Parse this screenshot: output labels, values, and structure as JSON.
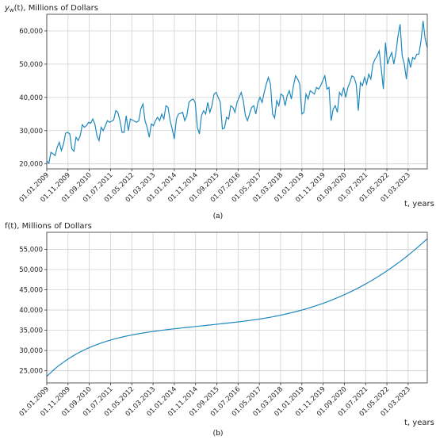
{
  "chart_data": [
    {
      "type": "line",
      "panel_label": "(a)",
      "ylabel_main": "y",
      "ylabel_sub": "w",
      "ylabel_rest": "(t), Millions of Dollars",
      "xlabel": "t, years",
      "ylim": [
        18500,
        65000
      ],
      "yticks": [
        20000,
        30000,
        40000,
        50000,
        60000
      ],
      "ytick_labels": [
        "20,000",
        "30,000",
        "40,000",
        "50,000",
        "60,000"
      ],
      "x_start": "01.01.2009",
      "xticks": [
        "01.01.2009",
        "01.11.2009",
        "01.09.2010",
        "01.07.2011",
        "01.05.2012",
        "01.03.2013",
        "01.01.2014",
        "01.11.2014",
        "01.09.2015",
        "01.07.2016",
        "01.05.2017",
        "01.03.2018",
        "01.01.2019",
        "01.11.2019",
        "01.09.2020",
        "01.07.2021",
        "01.05.2022",
        "01.03.2023"
      ],
      "values": [
        20800,
        20200,
        23500,
        23000,
        22500,
        25000,
        26500,
        24000,
        26000,
        29200,
        29500,
        29000,
        24500,
        23800,
        28000,
        27000,
        28500,
        31800,
        31000,
        31500,
        32500,
        32200,
        33500,
        32000,
        28500,
        27000,
        31000,
        30000,
        31500,
        33000,
        32500,
        32800,
        33200,
        36000,
        35500,
        33000,
        29500,
        29500,
        34500,
        30000,
        33500,
        33200,
        32800,
        32500,
        33000,
        36500,
        38000,
        33000,
        31000,
        28000,
        32000,
        31500,
        33000,
        34000,
        33000,
        35000,
        33500,
        37500,
        37000,
        33000,
        30500,
        27500,
        33500,
        35000,
        35200,
        35500,
        33000,
        34500,
        38500,
        39200,
        39500,
        38500,
        31000,
        29000,
        34500,
        36000,
        35000,
        38500,
        35500,
        37500,
        41000,
        41500,
        40000,
        38500,
        30500,
        30800,
        34000,
        33500,
        37500,
        37000,
        35500,
        38500,
        40000,
        41500,
        39000,
        34500,
        33000,
        35000,
        37000,
        37500,
        35000,
        38500,
        40000,
        38500,
        41500,
        44000,
        46000,
        44000,
        35000,
        33800,
        39000,
        37500,
        41000,
        40500,
        37500,
        40500,
        42000,
        39500,
        43500,
        46500,
        45500,
        44000,
        35000,
        35500,
        41000,
        39500,
        42000,
        41500,
        41000,
        43000,
        42500,
        43500,
        45000,
        46500,
        42500,
        43000,
        33000,
        36500,
        37500,
        35500,
        41500,
        40500,
        43000,
        40000,
        43000,
        44500,
        46500,
        46000,
        44000,
        36000,
        44500,
        43500,
        46000,
        44000,
        47000,
        45500,
        50000,
        51500,
        52500,
        54000,
        48500,
        42500,
        56500,
        50000,
        52000,
        53500,
        50000,
        53500,
        58500,
        62000,
        52500,
        50000,
        45500,
        52000,
        49000,
        52000,
        51500,
        53000,
        53000,
        57000,
        63000,
        57500,
        55000
      ]
    },
    {
      "type": "line",
      "panel_label": "(b)",
      "ylabel": "f(t), Millions of Dollars",
      "xlabel": "t, years",
      "ylim": [
        22000,
        59200
      ],
      "yticks": [
        25000,
        30000,
        35000,
        40000,
        45000,
        50000,
        55000
      ],
      "ytick_labels": [
        "25,000",
        "30,000",
        "35,000",
        "40,000",
        "45,000",
        "50,000",
        "55,000"
      ],
      "x_start": "01.01.2009",
      "xticks": [
        "01.01.2009",
        "01.11.2009",
        "01.09.2010",
        "01.07.2011",
        "01.05.2012",
        "01.03.2013",
        "01.01.2014",
        "01.11.2014",
        "01.09.2015",
        "01.07.2016",
        "01.05.2017",
        "01.03.2018",
        "01.01.2019",
        "01.11.2019",
        "01.09.2020",
        "01.07.2021",
        "01.05.2022",
        "01.03.2023"
      ],
      "values": [
        23600,
        24250,
        24850,
        25450,
        26000,
        26500,
        26980,
        27450,
        27890,
        28310,
        28720,
        29100,
        29460,
        29800,
        30130,
        30440,
        30730,
        31000,
        31260,
        31510,
        31750,
        31980,
        32190,
        32390,
        32590,
        32780,
        32950,
        33120,
        33280,
        33430,
        33580,
        33710,
        33840,
        33970,
        34090,
        34200,
        34310,
        34420,
        34520,
        34620,
        34710,
        34800,
        34890,
        34980,
        35060,
        35140,
        35220,
        35300,
        35370,
        35450,
        35520,
        35590,
        35660,
        35730,
        35800,
        35870,
        35940,
        36010,
        36080,
        36150,
        36220,
        36290,
        36360,
        36430,
        36500,
        36570,
        36640,
        36710,
        36780,
        36850,
        36930,
        37000,
        37080,
        37160,
        37240,
        37320,
        37410,
        37500,
        37590,
        37680,
        37780,
        37880,
        37990,
        38100,
        38220,
        38340,
        38470,
        38600,
        38740,
        38880,
        39030,
        39180,
        39340,
        39500,
        39670,
        39840,
        40020,
        40210,
        40400,
        40600,
        40810,
        41020,
        41240,
        41470,
        41700,
        41940,
        42190,
        42440,
        42710,
        42980,
        43260,
        43540,
        43840,
        44140,
        44450,
        44770,
        45100,
        45440,
        45780,
        46140,
        46500,
        46870,
        47250,
        47640,
        48040,
        48450,
        48870,
        49300,
        49740,
        50190,
        50650,
        51120,
        51600,
        52090,
        52590,
        53110,
        53630,
        54170,
        54710,
        55270,
        55840,
        56420,
        57010,
        57600
      ]
    }
  ]
}
